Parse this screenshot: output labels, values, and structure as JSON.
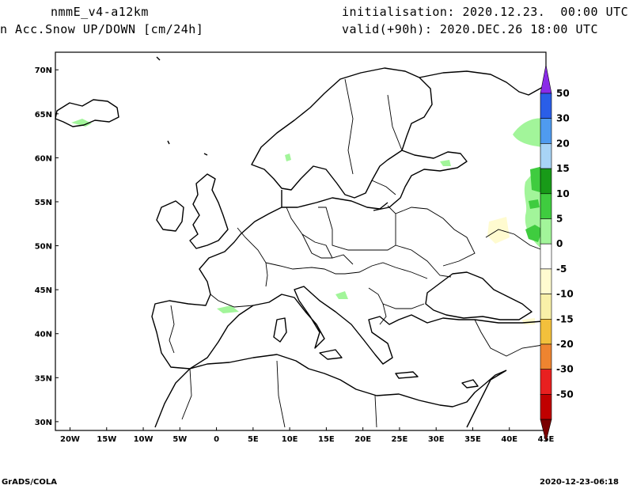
{
  "header": {
    "model": "nmmE_v4-a12km",
    "parameter": "n Acc.Snow UP/DOWN [cm/24h]",
    "initialisation": "initialisation: 2020.12.23.  00:00 UTC",
    "valid": "valid(+90h): 2020.DEC.26 18:00 UTC"
  },
  "footer": {
    "software": "GrADS/COLA",
    "timestamp": "2020-12-23-06:18"
  },
  "map": {
    "lon_range": [
      -22,
      45
    ],
    "lat_range": [
      29,
      72
    ],
    "lon_ticks": [
      "20W",
      "15W",
      "10W",
      "5W",
      "0",
      "5E",
      "10E",
      "15E",
      "20E",
      "25E",
      "30E",
      "35E",
      "40E",
      "45E"
    ],
    "lat_ticks": [
      "70N",
      "65N",
      "60N",
      "55N",
      "50N",
      "45N",
      "40N",
      "35N",
      "30N"
    ]
  },
  "colorbar": {
    "levels": [
      {
        "label": "50",
        "color": "#2a5ee8"
      },
      {
        "label": "30",
        "color": "#4f9bef"
      },
      {
        "label": "20",
        "color": "#a8d4f6"
      },
      {
        "label": "15",
        "color": "#189a18"
      },
      {
        "label": "10",
        "color": "#3fcc3f"
      },
      {
        "label": "5",
        "color": "#a2f59a"
      },
      {
        "label": "0",
        "color": "#ffffff"
      },
      {
        "label": "-5",
        "color": "#fffbd0"
      },
      {
        "label": "-10",
        "color": "#f8f0a8"
      },
      {
        "label": "-15",
        "color": "#f2c03c"
      },
      {
        "label": "-20",
        "color": "#ee8430"
      },
      {
        "label": "-30",
        "color": "#e82020"
      },
      {
        "label": "-50",
        "color": "#c00000"
      }
    ],
    "top_color": "#8a2be8",
    "bottom_color": "#7a0000"
  }
}
